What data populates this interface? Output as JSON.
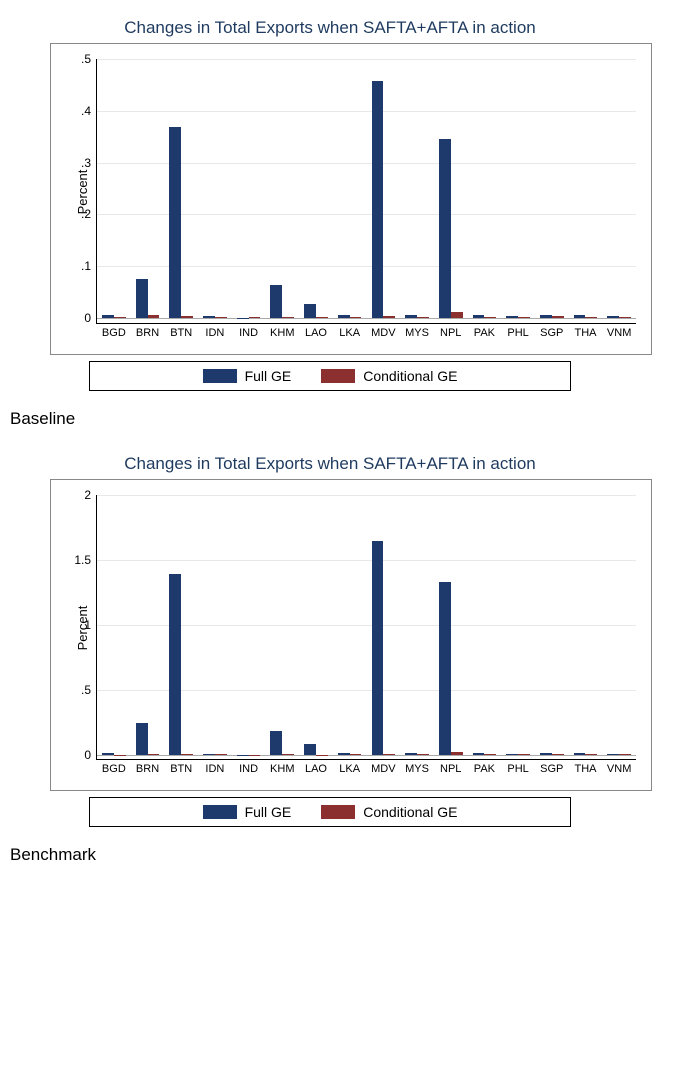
{
  "charts": [
    {
      "id": "baseline",
      "title": "Changes in Total Exports when SAFTA+AFTA in action",
      "ylabel": "Percent",
      "ylim": [
        -0.01,
        0.5
      ],
      "yticks": [
        0,
        0.1,
        0.2,
        0.3,
        0.4,
        0.5
      ],
      "ytick_labels": [
        "0",
        ".1",
        ".2",
        ".3",
        ".4",
        ".5"
      ],
      "caption": "Baseline"
    },
    {
      "id": "benchmark",
      "title": "Changes in Total Exports when SAFTA+AFTA in action",
      "ylabel": "Percent",
      "ylim": [
        -0.03,
        2.0
      ],
      "yticks": [
        0,
        0.5,
        1.0,
        1.5,
        2.0
      ],
      "ytick_labels": [
        "0",
        ".5",
        "1",
        "1.5",
        "2"
      ],
      "caption": "Benchmark"
    }
  ],
  "categories": [
    "BGD",
    "BRN",
    "BTN",
    "IDN",
    "IND",
    "KHM",
    "LAO",
    "LKA",
    "MDV",
    "MYS",
    "NPL",
    "PAK",
    "PHL",
    "SGP",
    "THA",
    "VNM"
  ],
  "data": {
    "baseline": {
      "full_ge": [
        0.006,
        0.076,
        0.368,
        0.004,
        -0.002,
        0.064,
        0.026,
        0.006,
        0.458,
        0.006,
        0.345,
        0.005,
        0.004,
        0.006,
        0.006,
        0.003
      ],
      "conditional_ge": [
        0.001,
        0.005,
        0.004,
        0.002,
        0.001,
        0.002,
        0.001,
        0.002,
        0.003,
        0.002,
        0.011,
        0.002,
        0.002,
        0.004,
        0.002,
        0.002
      ]
    },
    "benchmark": {
      "full_ge": [
        0.02,
        0.245,
        1.395,
        0.012,
        -0.01,
        0.185,
        0.085,
        0.018,
        1.65,
        0.015,
        1.33,
        0.015,
        0.012,
        0.018,
        0.015,
        0.01
      ],
      "conditional_ge": [
        0.003,
        0.01,
        0.01,
        0.005,
        0.003,
        0.005,
        0.003,
        0.005,
        0.008,
        0.005,
        0.022,
        0.005,
        0.005,
        0.008,
        0.005,
        0.005
      ]
    }
  },
  "series": [
    {
      "key": "full_ge",
      "label": "Full GE",
      "color": "#1e3a6d"
    },
    {
      "key": "conditional_ge",
      "label": "Conditional GE",
      "color": "#8b2f2f"
    }
  ],
  "style": {
    "background_color": "#ffffff",
    "grid_color": "#e8e8e8",
    "title_color": "#1e3a5f",
    "title_fontsize": 17,
    "label_fontsize": 13,
    "tick_fontsize": 12,
    "bar_group_width": 0.7
  }
}
